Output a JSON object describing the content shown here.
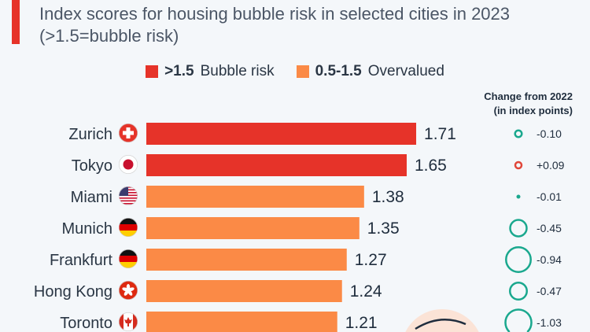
{
  "title": "Index scores for housing bubble risk in selected cities in 2023 (>1.5=bubble risk)",
  "legend": [
    {
      "key": ">1.5",
      "label": "Bubble risk",
      "color": "#e63329"
    },
    {
      "key": "0.5-1.5",
      "label": "Overvalued",
      "color": "#fb8a46"
    }
  ],
  "change_header": [
    "Change from 2022",
    "(in index points)"
  ],
  "colors": {
    "decrease": "#1aa88e",
    "increase": "#e0473a",
    "decoration": "#fbe3d6"
  },
  "chart_data": {
    "type": "bar",
    "orientation": "horizontal",
    "categories": [
      "Zurich",
      "Tokyo",
      "Miami",
      "Munich",
      "Frankfurt",
      "Hong Kong",
      "Toronto"
    ],
    "flags": [
      "switzerland-flag-icon",
      "japan-flag-icon",
      "usa-flag-icon",
      "germany-flag-icon",
      "germany-flag-icon",
      "hong-kong-flag-icon",
      "canada-flag-icon"
    ],
    "values": [
      1.71,
      1.65,
      1.38,
      1.35,
      1.27,
      1.24,
      1.21
    ],
    "value_labels": [
      "1.71",
      "1.65",
      "1.38",
      "1.35",
      "1.27",
      "1.24",
      "1.21"
    ],
    "change_from_2022": [
      -0.1,
      0.09,
      -0.01,
      -0.45,
      -0.94,
      -0.47,
      -1.03
    ],
    "change_labels": [
      "-0.10",
      "+0.09",
      "-0.01",
      "-0.45",
      "-0.94",
      "-0.47",
      "-1.03"
    ],
    "threshold": 1.5,
    "grid": false
  }
}
